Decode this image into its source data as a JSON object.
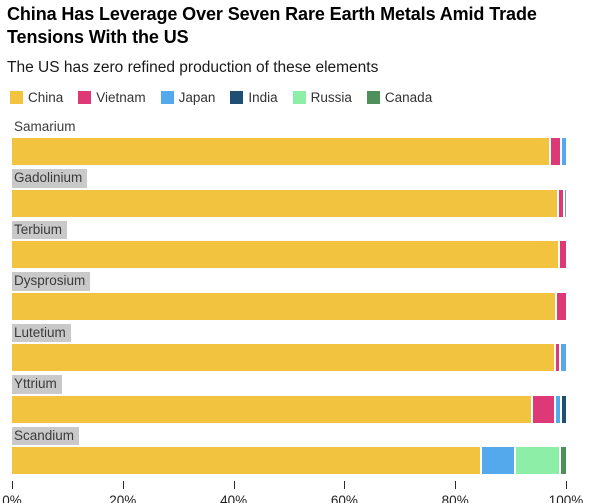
{
  "header": {
    "title": "China Has Leverage Over Seven Rare Earth Metals Amid Trade Tensions With the US",
    "subtitle": "The US has zero refined production of these elements"
  },
  "chart_data": {
    "type": "bar",
    "orientation": "horizontal",
    "stacked": true,
    "unit": "percent share of refined production",
    "title": "China Has Leverage Over Seven Rare Earth Metals Amid Trade Tensions With the US",
    "subtitle": "The US has zero refined production of these elements",
    "legend_position": "top",
    "grid": false,
    "categories": [
      "Samarium",
      "Gadolinium",
      "Terbium",
      "Dysprosium",
      "Lutetium",
      "Yttrium",
      "Scandium"
    ],
    "label_highlight": [
      false,
      true,
      true,
      true,
      true,
      true,
      true
    ],
    "series": [
      {
        "name": "China",
        "color": "#F1C33E",
        "values": [
          97,
          98.3,
          98.6,
          98,
          97.9,
          93.6,
          84.5
        ]
      },
      {
        "name": "Vietnam",
        "color": "#DD3976",
        "values": [
          2,
          1.2,
          1.4,
          2,
          0.8,
          4.3,
          0
        ]
      },
      {
        "name": "Japan",
        "color": "#54A9EC",
        "values": [
          1,
          0.5,
          0,
          0,
          1.3,
          1.1,
          6.2
        ]
      },
      {
        "name": "India",
        "color": "#1F4F72",
        "values": [
          0,
          0,
          0,
          0,
          0,
          1.0,
          0
        ]
      },
      {
        "name": "Russia",
        "color": "#8DEFA7",
        "values": [
          0,
          0,
          0,
          0,
          0,
          0,
          8.0
        ]
      },
      {
        "name": "Canada",
        "color": "#4E9059",
        "values": [
          0,
          0,
          0,
          0,
          0,
          0,
          1.3
        ]
      }
    ],
    "x_axis": {
      "range": [
        0,
        100
      ],
      "ticks": [
        0,
        20,
        40,
        60,
        80,
        100
      ],
      "tick_labels": [
        "0%",
        "20%",
        "40%",
        "60%",
        "80%",
        "100%"
      ]
    }
  }
}
